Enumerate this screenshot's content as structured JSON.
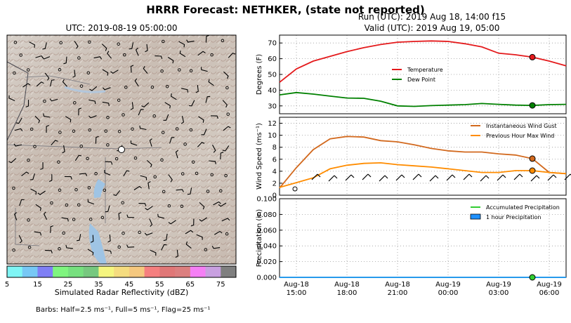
{
  "header": {
    "title": "HRRR Forecast: NETHKER, (state not reported)",
    "run": "Run (UTC): 2019 Aug 18, 14:00 f15",
    "valid": "Valid (UTC): 2019 Aug 19, 05:00"
  },
  "map": {
    "title": "UTC: 2019-08-19 05:00:00",
    "colorbar": {
      "label": "Simulated Radar Reflectivity (dBZ)",
      "ticks": [
        "5",
        "15",
        "25",
        "35",
        "45",
        "55",
        "65",
        "75"
      ],
      "colors": [
        "#7ff5f5",
        "#77c8f5",
        "#7f7ff5",
        "#7ff57f",
        "#77e07f",
        "#77c87f",
        "#f5f57f",
        "#f5dc7f",
        "#f5c87f",
        "#f57f7f",
        "#e07777",
        "#dc7f7f",
        "#f57ff5",
        "#c8a0e0",
        "#7f7f7f"
      ]
    },
    "barb_note": "Barbs: Half=2.5 ms⁻¹, Full=5 ms⁻¹, Flag=25 ms⁻¹"
  },
  "chart_data": [
    {
      "type": "line",
      "ylabel": "Degrees (F)",
      "ylim": [
        25,
        75
      ],
      "yticks": [
        "30",
        "40",
        "50",
        "60",
        "70"
      ],
      "x": [
        "2019-08-18 14:00",
        "2019-08-18 15:00",
        "2019-08-18 16:00",
        "2019-08-18 17:00",
        "2019-08-18 18:00",
        "2019-08-18 19:00",
        "2019-08-18 20:00",
        "2019-08-18 21:00",
        "2019-08-18 22:00",
        "2019-08-18 23:00",
        "2019-08-19 00:00",
        "2019-08-19 01:00",
        "2019-08-19 02:00",
        "2019-08-19 03:00",
        "2019-08-19 04:00",
        "2019-08-19 05:00",
        "2019-08-19 06:00",
        "2019-08-19 07:00"
      ],
      "series": [
        {
          "name": "Temperature",
          "color": "#e41a1c",
          "values": [
            45,
            53.5,
            58.5,
            61.5,
            64.5,
            67,
            69,
            70.5,
            71,
            71.3,
            71,
            69.5,
            67.5,
            63.5,
            62.5,
            61,
            58.5,
            55.5
          ]
        },
        {
          "name": "Dew Point",
          "color": "#008000",
          "values": [
            37,
            38.5,
            37.5,
            36.2,
            35,
            34.8,
            33,
            30,
            29.7,
            30.2,
            30.5,
            30.8,
            31.5,
            31,
            30.5,
            30.3,
            30.8,
            31
          ]
        }
      ],
      "marker_at": "2019-08-19 05:00",
      "legend": "center"
    },
    {
      "type": "line",
      "ylabel": "Wind Speed (ms⁻¹)",
      "ylim": [
        0,
        13
      ],
      "yticks": [
        "0",
        "2",
        "4",
        "6",
        "8",
        "10",
        "12"
      ],
      "x": [
        "2019-08-18 14:00",
        "2019-08-18 15:00",
        "2019-08-18 16:00",
        "2019-08-18 17:00",
        "2019-08-18 18:00",
        "2019-08-18 19:00",
        "2019-08-18 20:00",
        "2019-08-18 21:00",
        "2019-08-18 22:00",
        "2019-08-18 23:00",
        "2019-08-19 00:00",
        "2019-08-19 01:00",
        "2019-08-19 02:00",
        "2019-08-19 03:00",
        "2019-08-19 04:00",
        "2019-08-19 05:00",
        "2019-08-19 06:00",
        "2019-08-19 07:00"
      ],
      "series": [
        {
          "name": "Instantaneous Wind Gust",
          "color": "#d2691e",
          "values": [
            1.2,
            4.6,
            7.6,
            9.4,
            9.8,
            9.7,
            9.1,
            8.9,
            8.4,
            7.8,
            7.4,
            7.2,
            7.2,
            6.9,
            6.7,
            6.1,
            3.8,
            3.6
          ]
        },
        {
          "name": "Previous Hour Max Wind",
          "color": "#ff8c00",
          "values": [
            1.3,
            2.1,
            2.9,
            4.4,
            5.0,
            5.3,
            5.4,
            5.1,
            4.9,
            4.7,
            4.4,
            4.1,
            3.8,
            3.8,
            4.1,
            4.1,
            3.8,
            3.6
          ]
        }
      ],
      "marker_at": "2019-08-19 05:00",
      "legend": "top-right"
    },
    {
      "type": "line",
      "ylabel": "Precipitation (in)",
      "ylim": [
        0,
        0.1
      ],
      "yticks": [
        "0.000",
        "0.020",
        "0.040",
        "0.060",
        "0.080",
        "0.100"
      ],
      "xticks": [
        [
          "Aug-18",
          "15:00"
        ],
        [
          "Aug-18",
          "18:00"
        ],
        [
          "Aug-18",
          "21:00"
        ],
        [
          "Aug-19",
          "00:00"
        ],
        [
          "Aug-19",
          "03:00"
        ],
        [
          "Aug-19",
          "06:00"
        ]
      ],
      "x": [
        "2019-08-18 14:00",
        "2019-08-18 15:00",
        "2019-08-18 16:00",
        "2019-08-18 17:00",
        "2019-08-18 18:00",
        "2019-08-18 19:00",
        "2019-08-18 20:00",
        "2019-08-18 21:00",
        "2019-08-18 22:00",
        "2019-08-18 23:00",
        "2019-08-19 00:00",
        "2019-08-19 01:00",
        "2019-08-19 02:00",
        "2019-08-19 03:00",
        "2019-08-19 04:00",
        "2019-08-19 05:00",
        "2019-08-19 06:00",
        "2019-08-19 07:00"
      ],
      "series": [
        {
          "name": "Accumulated Precipitation",
          "color": "#32cd32",
          "values": [
            0,
            0,
            0,
            0,
            0,
            0,
            0,
            0,
            0,
            0,
            0,
            0,
            0,
            0,
            0,
            0,
            0,
            0
          ]
        },
        {
          "name": "1 hour Precipitation",
          "color": "#1e90ff",
          "values": [
            0,
            0,
            0,
            0,
            0,
            0,
            0,
            0,
            0,
            0,
            0,
            0,
            0,
            0,
            0,
            0,
            0,
            0
          ]
        }
      ],
      "marker_at": "2019-08-19 05:00",
      "legend": "top-right"
    }
  ]
}
